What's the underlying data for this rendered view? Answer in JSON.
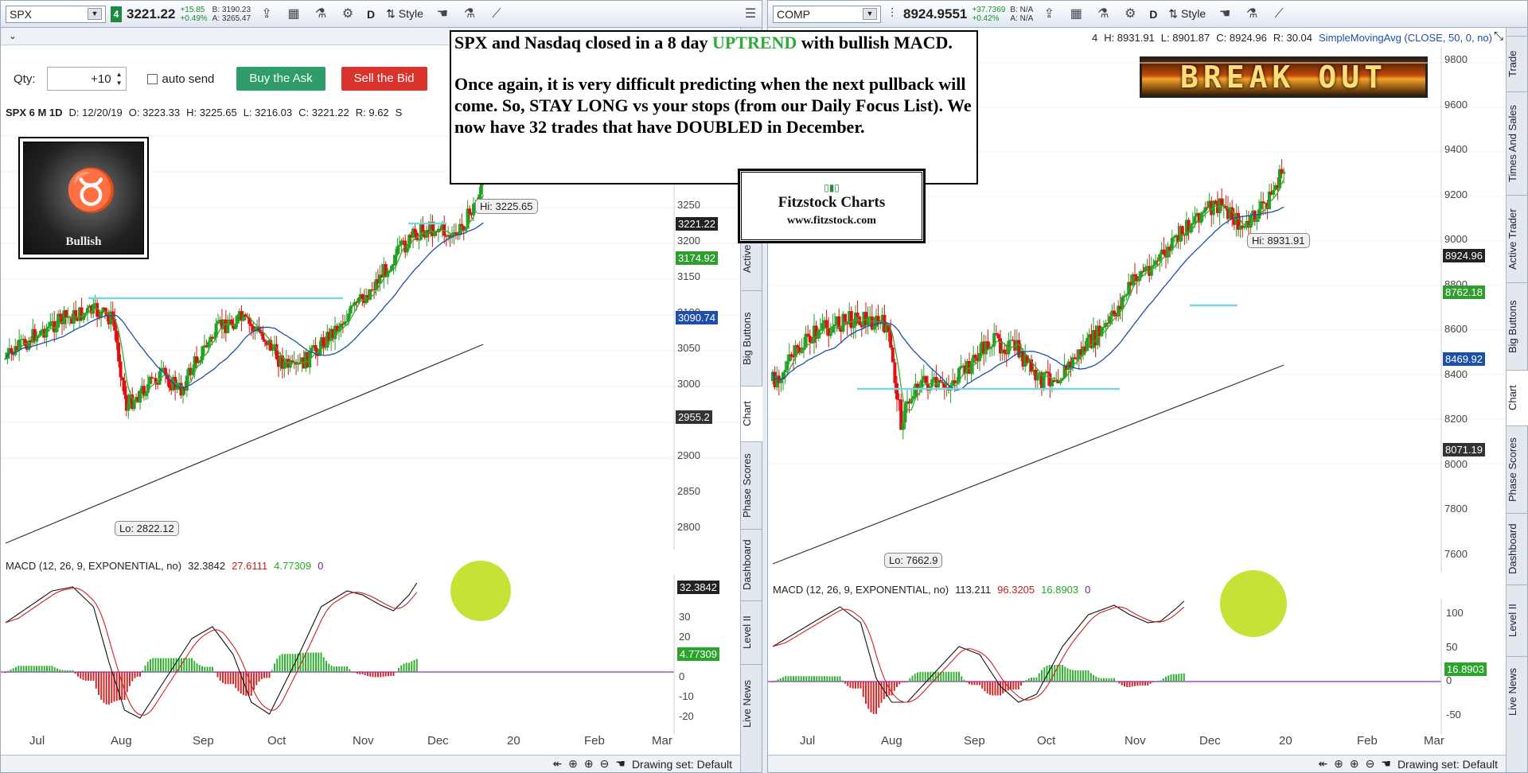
{
  "left": {
    "symbol": "SPX",
    "group": "4",
    "last": "3221.22",
    "change": "+15.85",
    "change_pct": "+0.49%",
    "bid": "B: 3190.23",
    "ask": "A: 3265.47",
    "toolbar": {
      "period": "D",
      "style": "Style"
    },
    "qty_label": "Qty:",
    "qty_value": "+10",
    "auto_send": "auto send",
    "buy_button": "Buy the Ask",
    "sell_button": "Sell the Bid",
    "stripe": [
      "SPX 6 M 1D",
      "D: 12/20/19",
      "O: 3223.33",
      "H: 3225.65",
      "L: 3216.03",
      "C: 3221.22",
      "R: 9.62",
      "S"
    ],
    "price_axis": [
      "3250",
      "3200",
      "3150",
      "3100",
      "3050",
      "3000",
      "2950",
      "2900",
      "2850",
      "2800"
    ],
    "price_tags": [
      {
        "text": "3221.22",
        "color": "#222222"
      },
      {
        "text": "3174.92",
        "color": "#2f9e2f"
      },
      {
        "text": "3090.74",
        "color": "#1e4fa8"
      },
      {
        "text": "2955.2",
        "color": "#333333"
      }
    ],
    "hi_label": "Hi: 3225.65",
    "lo_label": "Lo: 2822.12",
    "macd_header": [
      "MACD (12, 26, 9, EXPONENTIAL, no)",
      "32.3842",
      "27.6111",
      "4.77309",
      "0"
    ],
    "macd_axis": [
      "30",
      "20",
      "10",
      "0",
      "-10",
      "-20"
    ],
    "macd_tags": [
      {
        "text": "32.3842",
        "color": "#222222"
      },
      {
        "text": "4.77309",
        "color": "#2aa52a"
      }
    ],
    "months": [
      "Jul",
      "Aug",
      "Sep",
      "Oct",
      "Nov",
      "Dec",
      "20",
      "Feb",
      "Mar"
    ],
    "drawing_set": "Drawing set: Default",
    "side_tabs": [
      "Active",
      "Big Buttons",
      "Chart",
      "Phase Scores",
      "Dashboard",
      "Level II",
      "Live News"
    ],
    "bull_label": "Bullish"
  },
  "right": {
    "symbol": "COMP",
    "last": "8924.9551",
    "change": "+37.7369",
    "change_pct": "+0.42%",
    "bid": "B: N/A",
    "ask": "A: N/A",
    "toolbar": {
      "period": "D",
      "style": "Style"
    },
    "stripe": [
      "4",
      "H: 8931.91",
      "L: 8901.87",
      "C: 8924.96",
      "R: 30.04",
      "SimpleMovingAvg (CLOSE, 50, 0, no)"
    ],
    "price_axis": [
      "9800",
      "9600",
      "9400",
      "9200",
      "9000",
      "8800",
      "8600",
      "8400",
      "8200",
      "8000",
      "7800",
      "7600"
    ],
    "price_tags": [
      {
        "text": "8924.96",
        "color": "#222222"
      },
      {
        "text": "8762.18",
        "color": "#2f9e2f"
      },
      {
        "text": "8469.92",
        "color": "#1e4fa8"
      },
      {
        "text": "8071.19",
        "color": "#333333"
      }
    ],
    "hi_label": "Hi: 8931.91",
    "lo_label": "Lo: 7662.9",
    "macd_header": [
      "MACD (12, 26, 9, EXPONENTIAL, no)",
      "113.211",
      "96.3205",
      "16.8903",
      "0"
    ],
    "macd_axis": [
      "100",
      "50",
      "0",
      "-50"
    ],
    "macd_tags": [
      {
        "text": "16.8903",
        "color": "#2aa52a"
      }
    ],
    "months": [
      "Jul",
      "Aug",
      "Sep",
      "Oct",
      "Nov",
      "Dec",
      "20",
      "Feb",
      "Mar"
    ],
    "drawing_set": "Drawing set: Default",
    "side_tabs": [
      "Trade",
      "Times And Sales",
      "Active Trader",
      "Big Buttons",
      "Chart",
      "Phase Scores",
      "Dashboard",
      "Level II",
      "Live News"
    ],
    "breakout": "BREAK OUT"
  },
  "note": {
    "line1a": "SPX and Nasdaq closed in a 8 day ",
    "line1b": "UPTREND",
    "line1c": " with bullish MACD.",
    "para2": "Once again, it is very difficult predicting when the next pullback will come.  So, STAY LONG vs your stops (from our Daily Focus List).  We now have 32 trades that have DOUBLED in December."
  },
  "fitz": {
    "title": "Fitzstock Charts",
    "url": "www.fitzstock.com"
  }
}
